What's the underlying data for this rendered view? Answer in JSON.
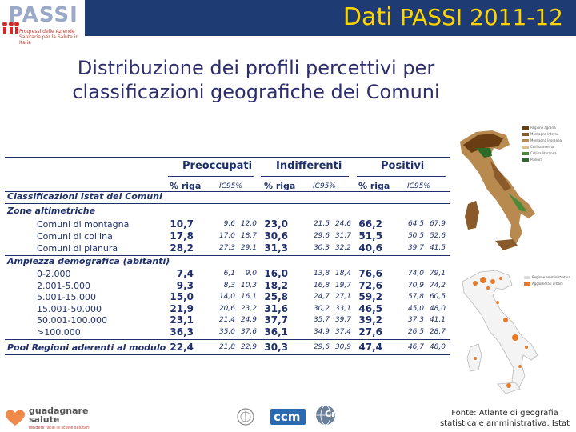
{
  "header": {
    "logo_text": "PASSI",
    "logo_sub": "Progressi delle Aziende Sanitarie per la Salute in Italia",
    "title_part1": "Dati",
    "title_part2": "PASSI 2011-12"
  },
  "subtitle": {
    "line1": "Distribuzione dei profili percettivi per",
    "line2": "classificazioni geografiche dei Comuni"
  },
  "table": {
    "groups": [
      "Preoccupati",
      "Indifferenti",
      "Positivi"
    ],
    "col_pct": "% riga",
    "col_ci": "IC95%",
    "title_row": "Classificazioni Istat dei Comuni",
    "section1": "Zone altimetriche",
    "rows1": [
      {
        "label": "Comuni di montagna",
        "v": [
          "10,7",
          "9,6",
          "12,0",
          "23,0",
          "21,5",
          "24,6",
          "66,2",
          "64,5",
          "67,9"
        ]
      },
      {
        "label": "Comuni di collina",
        "v": [
          "17,8",
          "17,0",
          "18,7",
          "30,6",
          "29,6",
          "31,7",
          "51,5",
          "50,5",
          "52,6"
        ]
      },
      {
        "label": "Comuni di pianura",
        "v": [
          "28,2",
          "27,3",
          "29,1",
          "31,3",
          "30,3",
          "32,2",
          "40,6",
          "39,7",
          "41,5"
        ]
      }
    ],
    "section2": "Ampiezza demografica (abitanti)",
    "rows2": [
      {
        "label": "0-2.000",
        "v": [
          "7,4",
          "6,1",
          "9,0",
          "16,0",
          "13,8",
          "18,4",
          "76,6",
          "74,0",
          "79,1"
        ]
      },
      {
        "label": "2.001-5.000",
        "v": [
          "9,3",
          "8,3",
          "10,3",
          "18,2",
          "16,8",
          "19,7",
          "72,6",
          "70,9",
          "74,2"
        ]
      },
      {
        "label": "5.001-15.000",
        "v": [
          "15,0",
          "14,0",
          "16,1",
          "25,8",
          "24,7",
          "27,1",
          "59,2",
          "57,8",
          "60,5"
        ]
      },
      {
        "label": "15.001-50.000",
        "v": [
          "21,9",
          "20,6",
          "23,2",
          "31,6",
          "30,2",
          "33,1",
          "46,5",
          "45,0",
          "48,0"
        ]
      },
      {
        "label": "50.001-100.000",
        "v": [
          "23,1",
          "21,4",
          "24,9",
          "37,7",
          "35,7",
          "39,7",
          "39,2",
          "37,3",
          "41,1"
        ]
      },
      {
        "label": ">100.000",
        "v": [
          "36,3",
          "35,0",
          "37,6",
          "36,1",
          "34,9",
          "37,4",
          "27,6",
          "26,5",
          "28,7"
        ]
      }
    ],
    "pool": {
      "label": "Pool Regioni aderenti al modulo",
      "v": [
        "22,4",
        "21,8",
        "22,9",
        "30,3",
        "29,6",
        "30,9",
        "47,4",
        "46,7",
        "48,0"
      ]
    }
  },
  "maps": {
    "map1_legend": [
      "Regione agraria",
      "Montagna interna",
      "Montagna litoranea",
      "Collina interna",
      "Collina litoranea",
      "Pianura"
    ],
    "map1_colors": [
      "#6b3d12",
      "#8b5a2b",
      "#b98a4f",
      "#d9c08a",
      "#4f8a3b",
      "#2e6b2a"
    ],
    "map2_legend": [
      "Regione amministrativa",
      "Agglomerati urbani"
    ],
    "map2_colors": [
      "#dddddd",
      "#e87b2a"
    ]
  },
  "footer": {
    "gs_line1": "guadagnare",
    "gs_line2": "salute",
    "gs_sub": "rendere facili le scelte salutari",
    "ccm_label": "ccm",
    "cnesps_label": "Cnesps",
    "fonte_line1": "Fonte: Atlante di geografia",
    "fonte_line2": "statistica e amministrativa. Istat"
  }
}
